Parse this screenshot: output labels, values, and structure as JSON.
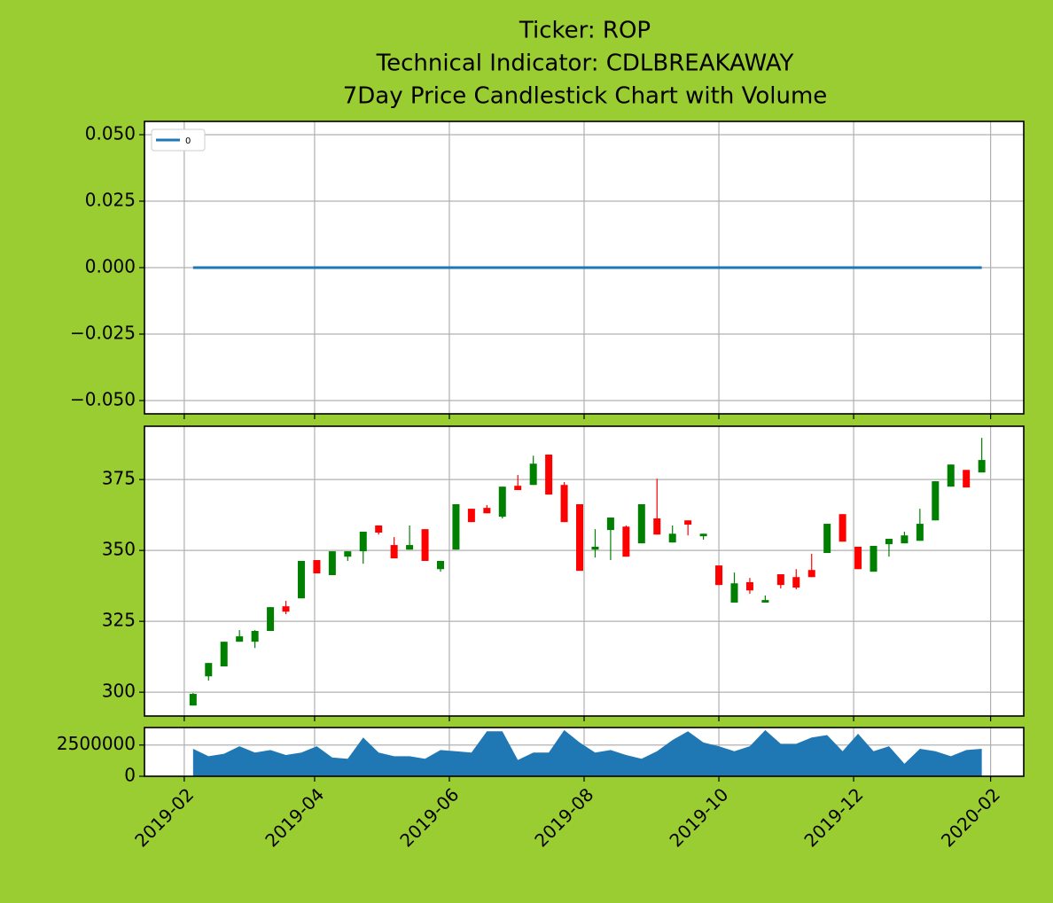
{
  "chart_data": [
    {
      "type": "line",
      "title": [
        "Ticker: ROP",
        "Technical Indicator: CDLBREAKAWAY",
        "7Day Price Candlestick Chart with Volume"
      ],
      "x": [
        "2019-02-05",
        "2019-02-12",
        "2019-02-19",
        "2019-02-26",
        "2019-03-05",
        "2019-03-12",
        "2019-03-19",
        "2019-03-26",
        "2019-04-02",
        "2019-04-09",
        "2019-04-16",
        "2019-04-23",
        "2019-04-30",
        "2019-05-07",
        "2019-05-14",
        "2019-05-21",
        "2019-05-28",
        "2019-06-04",
        "2019-06-11",
        "2019-06-18",
        "2019-06-25",
        "2019-07-02",
        "2019-07-09",
        "2019-07-16",
        "2019-07-23",
        "2019-07-30",
        "2019-08-06",
        "2019-08-13",
        "2019-08-20",
        "2019-08-27",
        "2019-09-03",
        "2019-09-10",
        "2019-09-17",
        "2019-09-24",
        "2019-10-01",
        "2019-10-08",
        "2019-10-15",
        "2019-10-22",
        "2019-10-29",
        "2019-11-05",
        "2019-11-12",
        "2019-11-19",
        "2019-11-26",
        "2019-12-03",
        "2019-12-10",
        "2019-12-17",
        "2019-12-24",
        "2019-12-31",
        "2020-01-07",
        "2020-01-14",
        "2020-01-21",
        "2020-01-28"
      ],
      "series": [
        {
          "name": "0",
          "color": "#1f77b4",
          "values": [
            0,
            0,
            0,
            0,
            0,
            0,
            0,
            0,
            0,
            0,
            0,
            0,
            0,
            0,
            0,
            0,
            0,
            0,
            0,
            0,
            0,
            0,
            0,
            0,
            0,
            0,
            0,
            0,
            0,
            0,
            0,
            0,
            0,
            0,
            0,
            0,
            0,
            0,
            0,
            0,
            0,
            0,
            0,
            0,
            0,
            0,
            0,
            0,
            0,
            0,
            0,
            0
          ]
        }
      ],
      "xlim": [
        "2019-01-14",
        "2020-02-16"
      ],
      "ylim": [
        -0.055,
        0.055
      ],
      "yticks": [
        {
          "value": -0.05,
          "label": "−0.050"
        },
        {
          "value": -0.025,
          "label": "−0.025"
        },
        {
          "value": 0,
          "label": "0.000"
        },
        {
          "value": 0.025,
          "label": "0.025"
        },
        {
          "value": 0.05,
          "label": "0.050"
        }
      ],
      "grid": true,
      "legend": "upper left"
    },
    {
      "type": "candlestick",
      "x": [
        "2019-02-05",
        "2019-02-12",
        "2019-02-19",
        "2019-02-26",
        "2019-03-05",
        "2019-03-12",
        "2019-03-19",
        "2019-03-26",
        "2019-04-02",
        "2019-04-09",
        "2019-04-16",
        "2019-04-23",
        "2019-04-30",
        "2019-05-07",
        "2019-05-14",
        "2019-05-21",
        "2019-05-28",
        "2019-06-04",
        "2019-06-11",
        "2019-06-18",
        "2019-06-25",
        "2019-07-02",
        "2019-07-09",
        "2019-07-16",
        "2019-07-23",
        "2019-07-30",
        "2019-08-06",
        "2019-08-13",
        "2019-08-20",
        "2019-08-27",
        "2019-09-03",
        "2019-09-10",
        "2019-09-17",
        "2019-09-24",
        "2019-10-01",
        "2019-10-08",
        "2019-10-15",
        "2019-10-22",
        "2019-10-29",
        "2019-11-05",
        "2019-11-12",
        "2019-11-19",
        "2019-11-26",
        "2019-12-03",
        "2019-12-10",
        "2019-12-17",
        "2019-12-24",
        "2019-12-31",
        "2020-01-07",
        "2020-01-14",
        "2020-01-21",
        "2020-01-28"
      ],
      "open": [
        295.3,
        305.6,
        309.1,
        317.8,
        317.8,
        321.6,
        330.3,
        333.1,
        346.6,
        341.3,
        347.8,
        349.7,
        358.8,
        351.9,
        350.3,
        357.5,
        343.4,
        350.3,
        364.7,
        365,
        361.9,
        372.8,
        373.1,
        383.8,
        373.1,
        366.3,
        350.3,
        357.2,
        358.4,
        352.5,
        361.3,
        352.8,
        360.6,
        355,
        344.7,
        331.6,
        338.8,
        331.6,
        341.6,
        340.6,
        343.1,
        349.1,
        362.8,
        351.3,
        342.5,
        352.2,
        352.5,
        353.4,
        360.6,
        372.5,
        378.4,
        377.5
      ],
      "high": [
        299.7,
        310.3,
        317.8,
        321.9,
        321.9,
        330,
        332.2,
        346.3,
        346.6,
        349.7,
        349.7,
        356.6,
        358.8,
        354.7,
        358.8,
        357.5,
        346.3,
        366.3,
        364.7,
        366,
        372.5,
        376.6,
        383.4,
        383.8,
        374.1,
        366.3,
        357.5,
        361.6,
        358.8,
        366.3,
        375.3,
        358.8,
        360.6,
        355.9,
        344.7,
        342.2,
        340.3,
        334.1,
        341.6,
        343.4,
        348.8,
        359.4,
        362.8,
        351.3,
        351.6,
        354.1,
        356.6,
        364.7,
        374.4,
        380.3,
        378.4,
        389.7
      ],
      "low": [
        295.3,
        304.1,
        309.1,
        317.8,
        315.6,
        321.6,
        327.5,
        333.1,
        341.9,
        341.3,
        346.3,
        345.3,
        355.6,
        347.2,
        350.3,
        346.3,
        342.5,
        350.3,
        360,
        363.1,
        361.3,
        371.3,
        373.1,
        369.7,
        360,
        342.8,
        347.5,
        346.6,
        347.8,
        352.5,
        355.6,
        352.8,
        355.3,
        353.8,
        337.8,
        331.6,
        334.7,
        331.6,
        336.6,
        336.3,
        340.6,
        349.1,
        353.1,
        343.4,
        342.5,
        347.8,
        352.5,
        353.4,
        360.6,
        372.5,
        372.2,
        377.5
      ],
      "close": [
        299.4,
        310.3,
        317.8,
        319.7,
        321.6,
        330,
        328.4,
        346.3,
        341.9,
        349.7,
        349.7,
        356.6,
        356.3,
        347.2,
        351.9,
        346.3,
        346.3,
        366.3,
        360,
        363.1,
        372.5,
        371.3,
        380.6,
        369.7,
        360,
        342.8,
        351.3,
        361.6,
        347.8,
        366.3,
        355.6,
        355.9,
        359.1,
        355.9,
        337.8,
        338.4,
        335.9,
        332.5,
        337.8,
        336.9,
        340.6,
        359.4,
        353.1,
        343.4,
        351.6,
        354.1,
        355.3,
        359.4,
        374.4,
        380.3,
        372.2,
        381.9
      ],
      "up_color": "#008000",
      "down_color": "#ff0000",
      "xlim": [
        "2019-01-14",
        "2020-02-16"
      ],
      "ylim": [
        291.6,
        393.8
      ],
      "yticks": [
        300,
        325,
        350,
        375
      ],
      "grid": true
    },
    {
      "type": "area",
      "x": [
        "2019-02-05",
        "2019-02-12",
        "2019-02-19",
        "2019-02-26",
        "2019-03-05",
        "2019-03-12",
        "2019-03-19",
        "2019-03-26",
        "2019-04-02",
        "2019-04-09",
        "2019-04-16",
        "2019-04-23",
        "2019-04-30",
        "2019-05-07",
        "2019-05-14",
        "2019-05-21",
        "2019-05-28",
        "2019-06-04",
        "2019-06-11",
        "2019-06-18",
        "2019-06-25",
        "2019-07-02",
        "2019-07-09",
        "2019-07-16",
        "2019-07-23",
        "2019-07-30",
        "2019-08-06",
        "2019-08-13",
        "2019-08-20",
        "2019-08-27",
        "2019-09-03",
        "2019-09-10",
        "2019-09-17",
        "2019-09-24",
        "2019-10-01",
        "2019-10-08",
        "2019-10-15",
        "2019-10-22",
        "2019-10-29",
        "2019-11-05",
        "2019-11-12",
        "2019-11-19",
        "2019-11-26",
        "2019-12-03",
        "2019-12-10",
        "2019-12-17",
        "2019-12-24",
        "2019-12-31",
        "2020-01-07",
        "2020-01-14",
        "2020-01-21",
        "2020-01-28"
      ],
      "values": [
        2200000,
        1600000,
        1800000,
        2400000,
        1900000,
        2100000,
        1700000,
        1900000,
        2400000,
        1500000,
        1400000,
        3100000,
        1900000,
        1600000,
        1600000,
        1400000,
        2100000,
        2000000,
        1900000,
        3600000,
        3600000,
        1300000,
        1900000,
        1900000,
        3700000,
        2700000,
        1900000,
        2100000,
        1700000,
        1400000,
        2000000,
        2900000,
        3600000,
        2700000,
        2400000,
        2000000,
        2400000,
        3700000,
        2600000,
        2600000,
        3100000,
        3300000,
        2000000,
        3400000,
        2000000,
        2400000,
        1000000,
        2200000,
        2000000,
        1600000,
        2100000,
        2200000
      ],
      "color": "#1f77b4",
      "xlim": [
        "2019-01-14",
        "2020-02-16"
      ],
      "ylim": [
        0,
        3900000
      ],
      "yticks": [
        0,
        2500000
      ],
      "xticks": [
        {
          "value": "2019-02-01",
          "label": "2019-02"
        },
        {
          "value": "2019-04-01",
          "label": "2019-04"
        },
        {
          "value": "2019-06-01",
          "label": "2019-06"
        },
        {
          "value": "2019-08-01",
          "label": "2019-08"
        },
        {
          "value": "2019-10-01",
          "label": "2019-10"
        },
        {
          "value": "2019-12-01",
          "label": "2019-12"
        },
        {
          "value": "2020-02-01",
          "label": "2020-02"
        }
      ],
      "grid": true
    }
  ]
}
